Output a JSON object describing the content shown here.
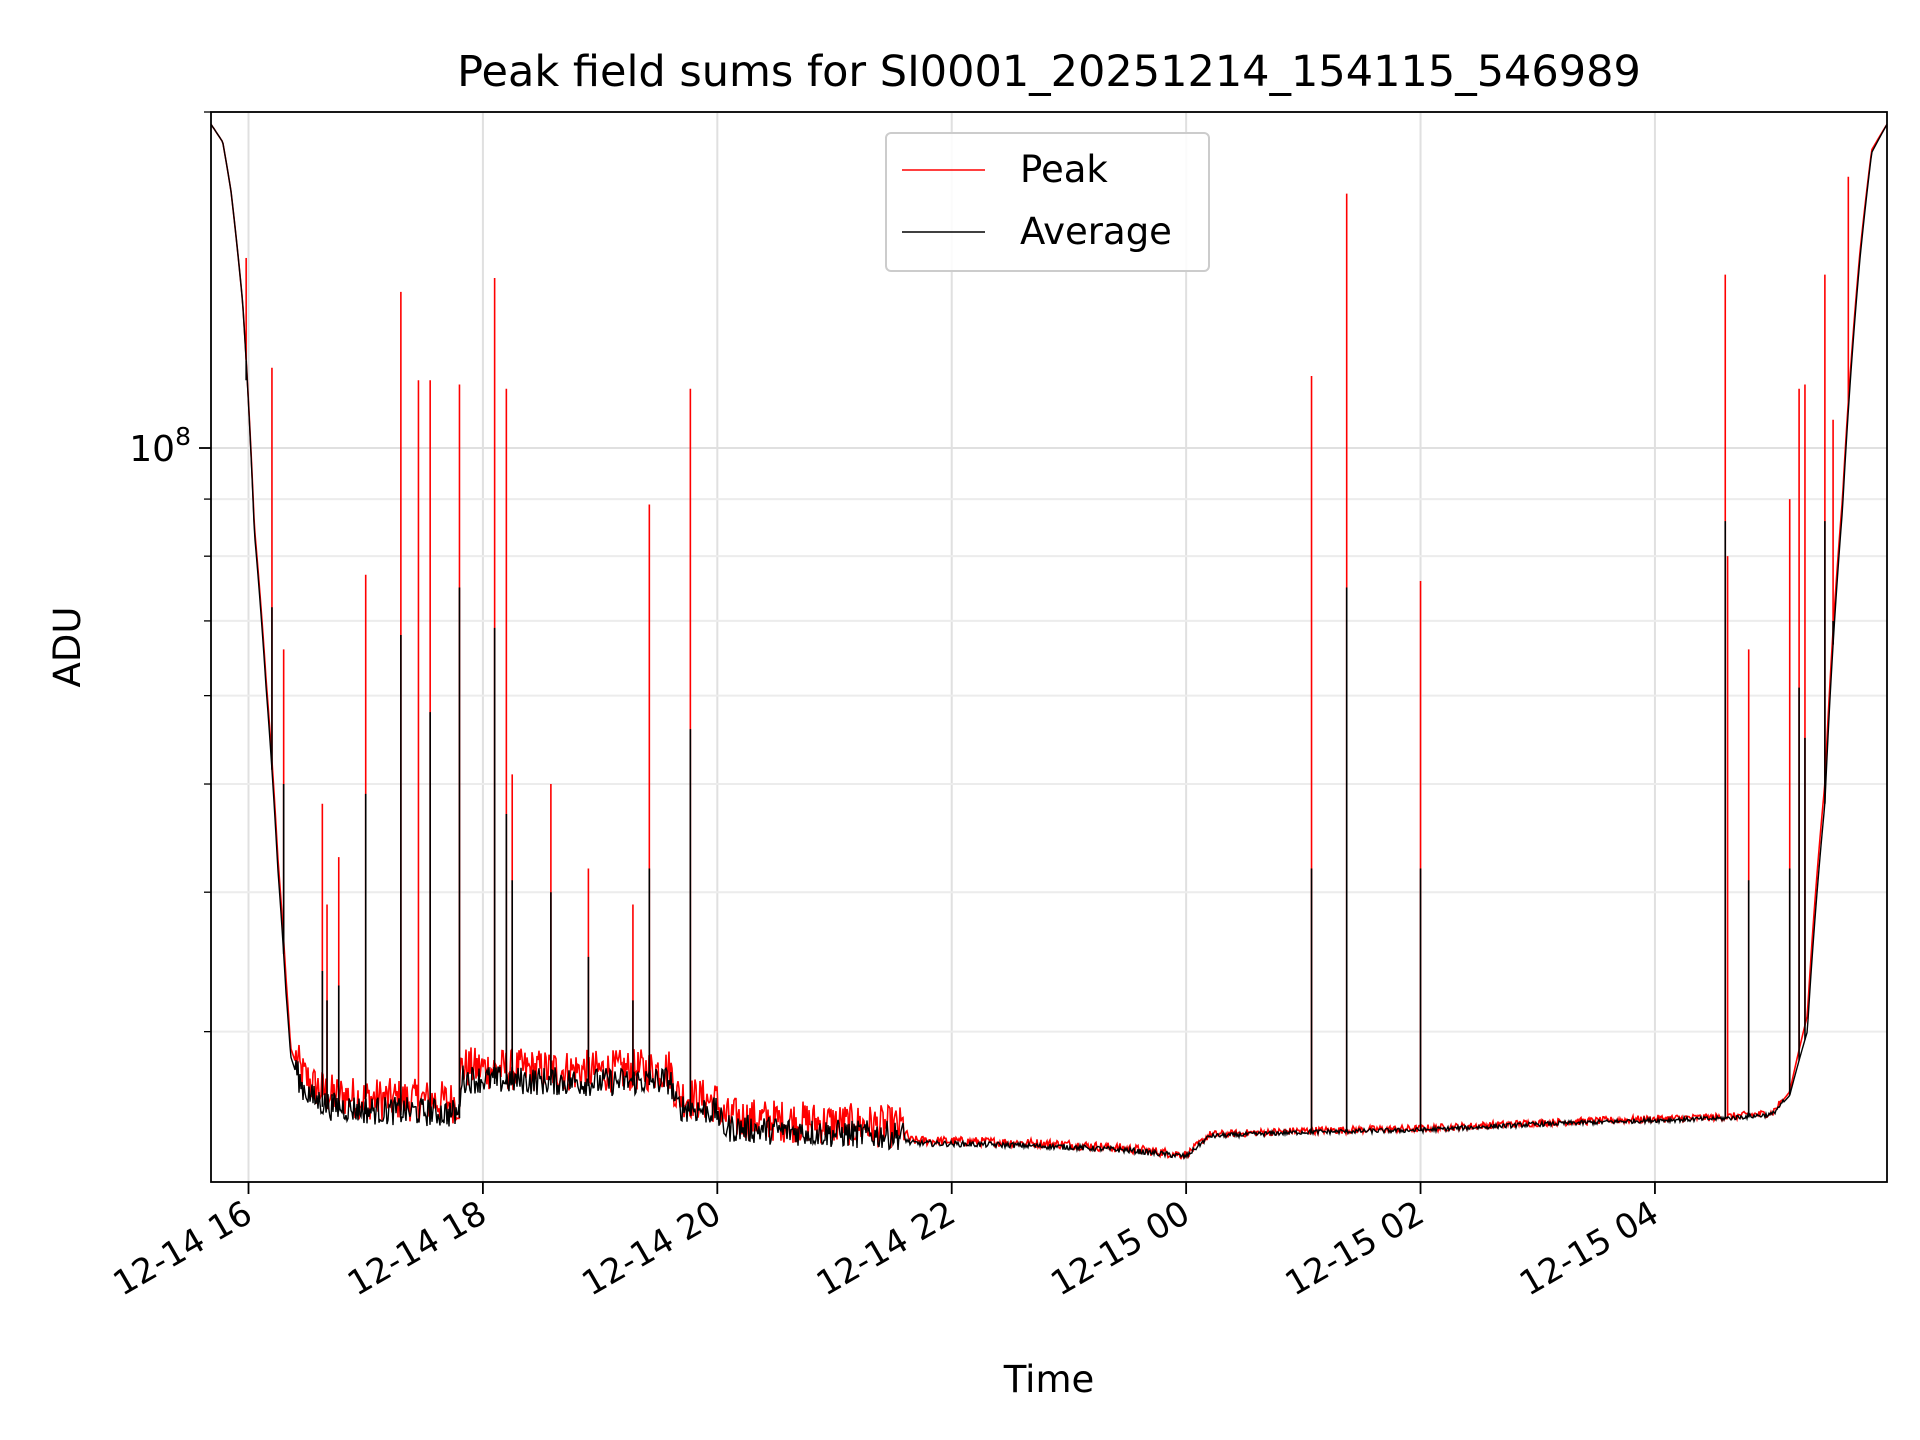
{
  "chart_data": {
    "type": "line",
    "title": "Peak field sums for SI0001_20251214_154115_546989",
    "xlabel": "Time",
    "ylabel": "ADU",
    "yscale": "log",
    "ylim_approx": [
      22000000,
      200000000
    ],
    "xlim_hours_from_12-14_00": [
      15.68,
      29.98
    ],
    "x_ticks": [
      {
        "hour": 16,
        "label": "12-14 16"
      },
      {
        "hour": 18,
        "label": "12-14 18"
      },
      {
        "hour": 20,
        "label": "12-14 20"
      },
      {
        "hour": 22,
        "label": "12-14 22"
      },
      {
        "hour": 24,
        "label": "12-15 00"
      },
      {
        "hour": 26,
        "label": "12-15 02"
      },
      {
        "hour": 28,
        "label": "12-15 04"
      }
    ],
    "y_ticks": [
      {
        "value": 100000000,
        "base": "10",
        "exp": "8"
      }
    ],
    "grid": true,
    "legend_position": "upper center",
    "series": [
      {
        "name": "Peak",
        "color": "#ff0000",
        "baseline": [
          [
            15.68,
            195000000
          ],
          [
            15.78,
            188000000
          ],
          [
            15.85,
            170000000
          ],
          [
            15.95,
            135000000
          ],
          [
            16.05,
            85000000
          ],
          [
            16.15,
            62000000
          ],
          [
            16.25,
            43000000
          ],
          [
            16.32,
            33500000
          ],
          [
            16.36,
            29000000
          ],
          [
            16.45,
            27200000
          ],
          [
            16.55,
            26500000
          ],
          [
            16.7,
            26000000
          ],
          [
            17.0,
            25800000
          ],
          [
            17.5,
            25700000
          ],
          [
            17.8,
            25600000
          ],
          [
            17.81,
            27500000
          ],
          [
            18.2,
            27400000
          ],
          [
            19.0,
            27300000
          ],
          [
            19.6,
            27400000
          ],
          [
            19.65,
            26000000
          ],
          [
            20.0,
            25600000
          ],
          [
            20.05,
            24800000
          ],
          [
            21.0,
            24500000
          ],
          [
            21.6,
            24300000
          ],
          [
            21.65,
            23900000
          ],
          [
            22.5,
            23800000
          ],
          [
            23.0,
            23700000
          ],
          [
            23.5,
            23500000
          ],
          [
            24.0,
            23200000
          ],
          [
            24.2,
            24200000
          ],
          [
            25.0,
            24400000
          ],
          [
            26.0,
            24500000
          ],
          [
            27.0,
            24800000
          ],
          [
            28.0,
            25000000
          ],
          [
            28.6,
            25100000
          ],
          [
            29.0,
            25300000
          ],
          [
            29.15,
            26500000
          ],
          [
            29.3,
            31000000
          ],
          [
            29.45,
            50000000
          ],
          [
            29.6,
            90000000
          ],
          [
            29.75,
            150000000
          ],
          [
            29.85,
            185000000
          ],
          [
            29.98,
            195000000
          ]
        ],
        "spikes": [
          [
            15.98,
            148000000
          ],
          [
            16.2,
            118000000
          ],
          [
            16.3,
            66000000
          ],
          [
            16.63,
            48000000
          ],
          [
            16.67,
            39000000
          ],
          [
            16.77,
            43000000
          ],
          [
            17.0,
            77000000
          ],
          [
            17.3,
            138000000
          ],
          [
            17.45,
            115000000
          ],
          [
            17.55,
            115000000
          ],
          [
            17.8,
            114000000
          ],
          [
            18.1,
            142000000
          ],
          [
            18.2,
            113000000
          ],
          [
            18.25,
            51000000
          ],
          [
            18.58,
            50000000
          ],
          [
            18.9,
            42000000
          ],
          [
            19.28,
            39000000
          ],
          [
            19.42,
            89000000
          ],
          [
            19.77,
            113000000
          ],
          [
            25.07,
            116000000
          ],
          [
            25.37,
            169000000
          ],
          [
            26.0,
            76000000
          ],
          [
            28.6,
            143000000
          ],
          [
            28.62,
            80000000
          ],
          [
            28.8,
            66000000
          ],
          [
            29.15,
            90000000
          ],
          [
            29.23,
            113000000
          ],
          [
            29.28,
            114000000
          ],
          [
            29.45,
            143000000
          ],
          [
            29.52,
            106000000
          ],
          [
            29.65,
            175000000
          ]
        ]
      },
      {
        "name": "Average",
        "color": "#000000",
        "baseline": [
          [
            15.68,
            195000000
          ],
          [
            15.78,
            188000000
          ],
          [
            15.85,
            170000000
          ],
          [
            15.95,
            135000000
          ],
          [
            16.05,
            84000000
          ],
          [
            16.15,
            61000000
          ],
          [
            16.25,
            42000000
          ],
          [
            16.32,
            32500000
          ],
          [
            16.36,
            28500000
          ],
          [
            16.45,
            26600000
          ],
          [
            16.55,
            25900000
          ],
          [
            16.7,
            25500000
          ],
          [
            17.0,
            25300000
          ],
          [
            17.5,
            25200000
          ],
          [
            17.8,
            25100000
          ],
          [
            17.81,
            27000000
          ],
          [
            18.2,
            26900000
          ],
          [
            19.0,
            26800000
          ],
          [
            19.6,
            26900000
          ],
          [
            19.65,
            25500000
          ],
          [
            20.0,
            25200000
          ],
          [
            20.05,
            24400000
          ],
          [
            21.0,
            24100000
          ],
          [
            21.6,
            24000000
          ],
          [
            21.65,
            23800000
          ],
          [
            22.5,
            23700000
          ],
          [
            23.0,
            23600000
          ],
          [
            23.5,
            23450000
          ],
          [
            24.0,
            23150000
          ],
          [
            24.2,
            24150000
          ],
          [
            25.0,
            24350000
          ],
          [
            26.0,
            24450000
          ],
          [
            27.0,
            24750000
          ],
          [
            28.0,
            24950000
          ],
          [
            28.6,
            25050000
          ],
          [
            29.0,
            25250000
          ],
          [
            29.15,
            26300000
          ],
          [
            29.3,
            30000000
          ],
          [
            29.45,
            48000000
          ],
          [
            29.6,
            88000000
          ],
          [
            29.75,
            148000000
          ],
          [
            29.85,
            184000000
          ],
          [
            29.98,
            195000000
          ]
        ],
        "spikes": [
          [
            15.98,
            115000000
          ],
          [
            16.2,
            72000000
          ],
          [
            16.3,
            50000000
          ],
          [
            16.63,
            34000000
          ],
          [
            16.67,
            32000000
          ],
          [
            16.77,
            33000000
          ],
          [
            17.0,
            49000000
          ],
          [
            17.3,
            68000000
          ],
          [
            17.55,
            58000000
          ],
          [
            17.8,
            75000000
          ],
          [
            18.1,
            69000000
          ],
          [
            18.2,
            47000000
          ],
          [
            18.25,
            41000000
          ],
          [
            18.58,
            40000000
          ],
          [
            18.9,
            35000000
          ],
          [
            19.28,
            32000000
          ],
          [
            19.42,
            42000000
          ],
          [
            19.77,
            56000000
          ],
          [
            25.07,
            42000000
          ],
          [
            25.37,
            75000000
          ],
          [
            26.0,
            42000000
          ],
          [
            28.6,
            86000000
          ],
          [
            28.8,
            41000000
          ],
          [
            29.15,
            42000000
          ],
          [
            29.23,
            61000000
          ],
          [
            29.28,
            55000000
          ],
          [
            29.45,
            86000000
          ],
          [
            29.52,
            70000000
          ]
        ]
      }
    ]
  }
}
